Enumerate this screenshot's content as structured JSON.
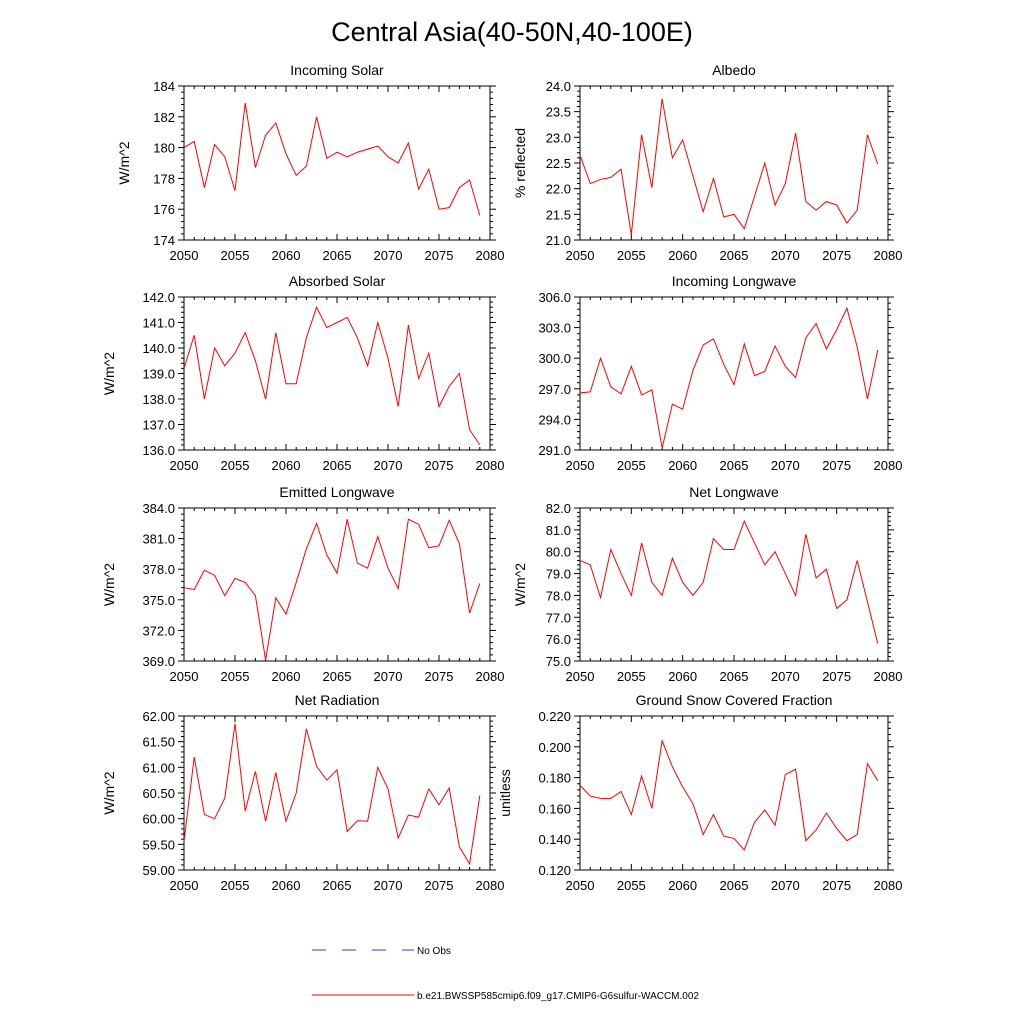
{
  "page_title": "Central Asia(40-50N,40-100E)",
  "legend": {
    "obs_label": "No Obs",
    "model_label": "b.e21.BWSSP585cmip6.f09_g17.CMIP6-G6sulfur-WACCM.002",
    "obs_color": "#3a3acd",
    "model_color": "#ff0000"
  },
  "chart_data": [
    {
      "type": "line",
      "title": "Incoming Solar",
      "ylabel": "W/m^2",
      "xlim": [
        2050,
        2080
      ],
      "ylim": [
        174,
        184
      ],
      "xticks": [
        2050,
        2055,
        2060,
        2065,
        2070,
        2075,
        2080
      ],
      "yticks": [
        "174",
        "176",
        "178",
        "180",
        "182",
        "184"
      ],
      "series": [
        {
          "color": "#ff0000",
          "x": [
            2050,
            2051,
            2052,
            2053,
            2054,
            2055,
            2056,
            2057,
            2058,
            2059,
            2060,
            2061,
            2062,
            2063,
            2064,
            2065,
            2066,
            2067,
            2068,
            2069,
            2070,
            2071,
            2072,
            2073,
            2074,
            2075,
            2076,
            2077,
            2078,
            2079
          ],
          "values": [
            180.0,
            180.4,
            177.4,
            180.2,
            179.4,
            177.2,
            182.9,
            178.7,
            180.8,
            181.6,
            179.6,
            178.2,
            178.8,
            182.0,
            179.3,
            179.7,
            179.4,
            179.7,
            179.9,
            180.1,
            179.4,
            179.0,
            180.3,
            177.3,
            178.6,
            176.0,
            176.1,
            177.4,
            177.9,
            175.6
          ]
        }
      ]
    },
    {
      "type": "line",
      "title": "Albedo",
      "ylabel": "% reflected",
      "xlim": [
        2050,
        2080
      ],
      "ylim": [
        21.0,
        24.0
      ],
      "xticks": [
        2050,
        2055,
        2060,
        2065,
        2070,
        2075,
        2080
      ],
      "yticks": [
        "21.0",
        "21.5",
        "22.0",
        "22.5",
        "23.0",
        "23.5",
        "24.0"
      ],
      "series": [
        {
          "color": "#ff0000",
          "x": [
            2050,
            2051,
            2052,
            2053,
            2054,
            2055,
            2056,
            2057,
            2058,
            2059,
            2060,
            2061,
            2062,
            2063,
            2064,
            2065,
            2066,
            2067,
            2068,
            2069,
            2070,
            2071,
            2072,
            2073,
            2074,
            2075,
            2076,
            2077,
            2078,
            2079
          ],
          "values": [
            22.65,
            22.1,
            22.18,
            22.22,
            22.38,
            21.1,
            23.05,
            22.02,
            23.75,
            22.6,
            22.95,
            22.25,
            21.55,
            22.2,
            21.45,
            21.5,
            21.22,
            21.85,
            22.5,
            21.68,
            22.1,
            23.08,
            21.75,
            21.58,
            21.75,
            21.68,
            21.33,
            21.58,
            23.05,
            22.48
          ]
        }
      ]
    },
    {
      "type": "line",
      "title": "Absorbed Solar",
      "ylabel": "W/m^2",
      "xlim": [
        2050,
        2080
      ],
      "ylim": [
        136.0,
        142.0
      ],
      "xticks": [
        2050,
        2055,
        2060,
        2065,
        2070,
        2075,
        2080
      ],
      "yticks": [
        "136.0",
        "137.0",
        "138.0",
        "139.0",
        "140.0",
        "141.0",
        "142.0"
      ],
      "series": [
        {
          "color": "#ff0000",
          "x": [
            2050,
            2051,
            2052,
            2053,
            2054,
            2055,
            2056,
            2057,
            2058,
            2059,
            2060,
            2061,
            2062,
            2063,
            2064,
            2065,
            2066,
            2067,
            2068,
            2069,
            2070,
            2071,
            2072,
            2073,
            2074,
            2075,
            2076,
            2077,
            2078,
            2079
          ],
          "values": [
            139.2,
            140.5,
            138.0,
            140.0,
            139.3,
            139.8,
            140.6,
            139.5,
            138.0,
            140.6,
            138.6,
            138.6,
            140.4,
            141.6,
            140.8,
            141.0,
            141.2,
            140.4,
            139.3,
            141.0,
            139.6,
            137.7,
            140.9,
            138.8,
            139.8,
            137.7,
            138.5,
            139.0,
            136.8,
            136.2
          ]
        }
      ]
    },
    {
      "type": "line",
      "title": "Incoming Longwave",
      "ylabel": "",
      "xlim": [
        2050,
        2080
      ],
      "ylim": [
        291.0,
        306.0
      ],
      "xticks": [
        2050,
        2055,
        2060,
        2065,
        2070,
        2075,
        2080
      ],
      "yticks": [
        "291.0",
        "294.0",
        "297.0",
        "300.0",
        "303.0",
        "306.0"
      ],
      "series": [
        {
          "color": "#ff0000",
          "x": [
            2050,
            2051,
            2052,
            2053,
            2054,
            2055,
            2056,
            2057,
            2058,
            2059,
            2060,
            2061,
            2062,
            2063,
            2064,
            2065,
            2066,
            2067,
            2068,
            2069,
            2070,
            2071,
            2072,
            2073,
            2074,
            2075,
            2076,
            2077,
            2078,
            2079
          ],
          "values": [
            296.6,
            296.7,
            300.0,
            297.2,
            296.5,
            299.2,
            296.4,
            296.9,
            291.2,
            295.5,
            295.0,
            298.8,
            301.3,
            301.9,
            299.4,
            297.4,
            301.4,
            298.3,
            298.7,
            301.2,
            299.2,
            298.1,
            302.0,
            303.4,
            300.9,
            302.8,
            304.9,
            301.1,
            296.0,
            300.8
          ]
        }
      ]
    },
    {
      "type": "line",
      "title": "Emitted Longwave",
      "ylabel": "W/m^2",
      "xlim": [
        2050,
        2080
      ],
      "ylim": [
        369.0,
        384.0
      ],
      "xticks": [
        2050,
        2055,
        2060,
        2065,
        2070,
        2075,
        2080
      ],
      "yticks": [
        "369.0",
        "372.0",
        "375.0",
        "378.0",
        "381.0",
        "384.0"
      ],
      "series": [
        {
          "color": "#ff0000",
          "x": [
            2050,
            2051,
            2052,
            2053,
            2054,
            2055,
            2056,
            2057,
            2058,
            2059,
            2060,
            2061,
            2062,
            2063,
            2064,
            2065,
            2066,
            2067,
            2068,
            2069,
            2070,
            2071,
            2072,
            2073,
            2074,
            2075,
            2076,
            2077,
            2078,
            2079
          ],
          "values": [
            376.2,
            376.0,
            377.9,
            377.4,
            375.4,
            377.1,
            376.7,
            375.4,
            369.1,
            375.2,
            373.6,
            376.7,
            380.0,
            382.5,
            379.4,
            377.6,
            382.9,
            378.6,
            378.1,
            381.2,
            378.1,
            376.1,
            382.9,
            382.4,
            380.1,
            380.3,
            382.8,
            380.5,
            373.7,
            376.6
          ]
        }
      ]
    },
    {
      "type": "line",
      "title": "Net Longwave",
      "ylabel": "W/m^2",
      "xlim": [
        2050,
        2080
      ],
      "ylim": [
        75.0,
        82.0
      ],
      "xticks": [
        2050,
        2055,
        2060,
        2065,
        2070,
        2075,
        2080
      ],
      "yticks": [
        "75.0",
        "76.0",
        "77.0",
        "78.0",
        "79.0",
        "80.0",
        "81.0",
        "82.0"
      ],
      "series": [
        {
          "color": "#ff0000",
          "x": [
            2050,
            2051,
            2052,
            2053,
            2054,
            2055,
            2056,
            2057,
            2058,
            2059,
            2060,
            2061,
            2062,
            2063,
            2064,
            2065,
            2066,
            2067,
            2068,
            2069,
            2070,
            2071,
            2072,
            2073,
            2074,
            2075,
            2076,
            2077,
            2078,
            2079
          ],
          "values": [
            79.6,
            79.4,
            77.9,
            80.1,
            79.0,
            78.0,
            80.4,
            78.6,
            78.0,
            79.7,
            78.6,
            78.0,
            78.6,
            80.6,
            80.1,
            80.1,
            81.4,
            80.4,
            79.4,
            80.0,
            79.0,
            78.0,
            80.8,
            78.8,
            79.2,
            77.4,
            77.8,
            79.6,
            77.7,
            75.8
          ]
        }
      ]
    },
    {
      "type": "line",
      "title": "Net Radiation",
      "ylabel": "W/m^2",
      "xlim": [
        2050,
        2080
      ],
      "ylim": [
        59.0,
        62.0
      ],
      "xticks": [
        2050,
        2055,
        2060,
        2065,
        2070,
        2075,
        2080
      ],
      "yticks": [
        "59.00",
        "59.50",
        "60.00",
        "60.50",
        "61.00",
        "61.50",
        "62.00"
      ],
      "series": [
        {
          "color": "#ff0000",
          "x": [
            2050,
            2051,
            2052,
            2053,
            2054,
            2055,
            2056,
            2057,
            2058,
            2059,
            2060,
            2061,
            2062,
            2063,
            2064,
            2065,
            2066,
            2067,
            2068,
            2069,
            2070,
            2071,
            2072,
            2073,
            2074,
            2075,
            2076,
            2077,
            2078,
            2079
          ],
          "values": [
            59.55,
            61.2,
            60.08,
            60.0,
            60.4,
            61.85,
            60.15,
            60.92,
            59.95,
            60.9,
            59.95,
            60.5,
            61.75,
            61.02,
            60.75,
            60.95,
            59.75,
            59.96,
            59.95,
            61.0,
            60.58,
            59.62,
            60.07,
            60.03,
            60.58,
            60.27,
            60.6,
            59.45,
            59.12,
            60.45
          ]
        }
      ]
    },
    {
      "type": "line",
      "title": "Ground Snow Covered Fraction",
      "ylabel": "unitless",
      "xlim": [
        2050,
        2080
      ],
      "ylim": [
        0.12,
        0.22
      ],
      "xticks": [
        2050,
        2055,
        2060,
        2065,
        2070,
        2075,
        2080
      ],
      "yticks": [
        "0.120",
        "0.140",
        "0.160",
        "0.180",
        "0.200",
        "0.220"
      ],
      "series": [
        {
          "color": "#ff0000",
          "x": [
            2050,
            2051,
            2052,
            2053,
            2054,
            2055,
            2056,
            2057,
            2058,
            2059,
            2060,
            2061,
            2062,
            2063,
            2064,
            2065,
            2066,
            2067,
            2068,
            2069,
            2070,
            2071,
            2072,
            2073,
            2074,
            2075,
            2076,
            2077,
            2078,
            2079
          ],
          "values": [
            0.175,
            0.168,
            0.1665,
            0.1665,
            0.171,
            0.156,
            0.181,
            0.16,
            0.204,
            0.187,
            0.174,
            0.163,
            0.143,
            0.156,
            0.142,
            0.1405,
            0.133,
            0.151,
            0.159,
            0.149,
            0.182,
            0.1855,
            0.139,
            0.146,
            0.157,
            0.147,
            0.139,
            0.143,
            0.189,
            0.178
          ]
        }
      ]
    }
  ]
}
